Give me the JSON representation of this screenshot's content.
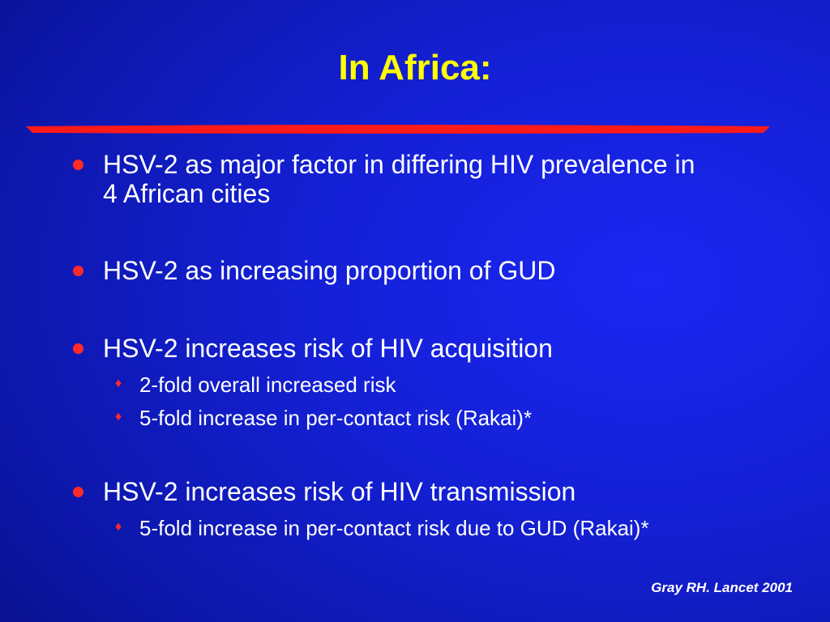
{
  "slide": {
    "title": "In Africa:",
    "accent_color": "#ff2a2a",
    "title_color": "#ffff00",
    "background_color": "#1420d4",
    "bullets": [
      {
        "text": "HSV-2 as major factor in differing HIV prevalence in 4 African cities",
        "sub": []
      },
      {
        "text": "HSV-2 as increasing proportion of GUD",
        "sub": []
      },
      {
        "text": "HSV-2 increases risk of HIV acquisition",
        "sub": [
          "2-fold overall increased risk",
          "5-fold increase in per-contact risk (Rakai)*"
        ]
      },
      {
        "text": "HSV-2 increases risk of HIV transmission",
        "sub": [
          "5-fold increase in per-contact risk due to GUD (Rakai)*"
        ]
      }
    ],
    "citation": "Gray RH. Lancet 2001"
  }
}
